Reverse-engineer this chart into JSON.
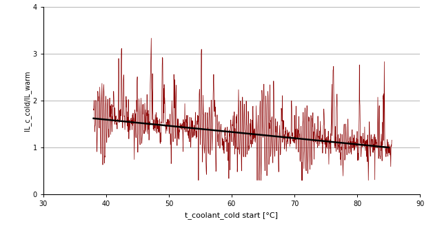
{
  "xlabel": "t_coolant_cold start [°C]",
  "ylabel": "IL_c_cold/IL_warm",
  "xlim": [
    30,
    90
  ],
  "ylim": [
    0,
    4
  ],
  "xticks": [
    30,
    40,
    50,
    60,
    70,
    80,
    90
  ],
  "yticks": [
    0,
    1,
    2,
    3,
    4
  ],
  "trend_x": [
    38,
    85
  ],
  "trend_y": [
    1.62,
    1.0
  ],
  "signal_color": "#8B0000",
  "trend_color": "#000000",
  "background_color": "#ffffff",
  "signal_linewidth": 0.5,
  "trend_linewidth": 1.8,
  "noise_seed": 42,
  "x_start": 38.0,
  "x_end": 85.5,
  "n_points": 1200,
  "grid_color": "#999999",
  "grid_linewidth": 0.5,
  "xlabel_fontsize": 8,
  "ylabel_fontsize": 7,
  "tick_labelsize": 7
}
